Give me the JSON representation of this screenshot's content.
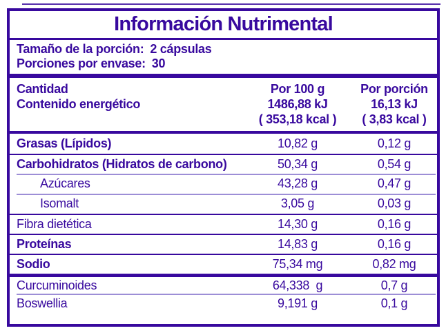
{
  "colors": {
    "primary": "#38099E",
    "divider": "#9D8ED6"
  },
  "title": "Información Nutrimental",
  "serving": {
    "size_label": "Tamaño de la porción:",
    "size_value": "2 cápsulas",
    "count_label": "Porciones por envase:",
    "count_value": "30"
  },
  "header": {
    "quantity_label": "Cantidad",
    "energy_label": "Contenido energético",
    "per100": {
      "title": "Por 100 g",
      "kj": "1486,88 kJ",
      "kcal": "( 353,18 kcal )"
    },
    "portion": {
      "title": "Por porción",
      "kj": "16,13 kJ",
      "kcal": "( 3,83 kcal )"
    }
  },
  "rows": [
    {
      "label": "Grasas (Lípidos)",
      "per100": "10,82 g",
      "portion": "0,12 g"
    },
    {
      "label": "Carbohidratos (Hidratos de carbono)",
      "per100": "50,34 g",
      "portion": "0,54 g"
    },
    {
      "label": "Azúcares",
      "per100": "43,28 g",
      "portion": "0,47 g"
    },
    {
      "label": "Isomalt",
      "per100": "3,05 g",
      "portion": "0,03 g"
    },
    {
      "label": "Fibra dietética",
      "per100": "14,30 g",
      "portion": "0,16 g"
    },
    {
      "label": "Proteínas",
      "per100": "14,83 g",
      "portion": "0,16 g"
    },
    {
      "label": "Sodio",
      "per100": "75,34 mg",
      "portion": "0,82 mg"
    },
    {
      "label": "Curcuminoides",
      "per100": "64,338  g",
      "portion": "0,7 g"
    },
    {
      "label": "Boswellia",
      "per100": "9,191 g",
      "portion": "0,1 g"
    }
  ]
}
